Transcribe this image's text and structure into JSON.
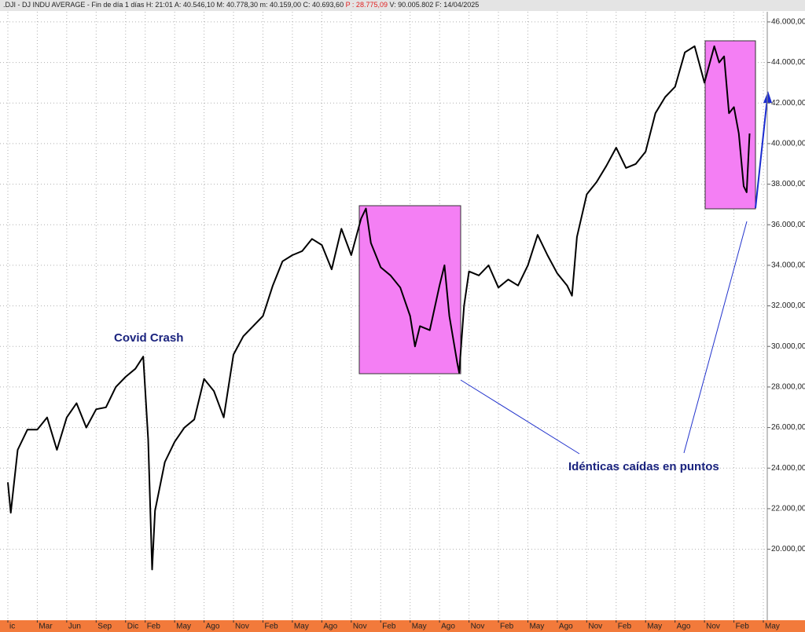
{
  "chart_data": {
    "type": "line",
    "header": [
      ".DJI - DJ INDU AVERAGE - Fin de día 1 días H: 21:01 A: 40.546,10 M: 40.778,30 m: 40.159,00 C: 40.693,60",
      "P : 28.775,09",
      "V: 90.005.802 F: 14/04/2025"
    ],
    "annotations": [
      "Covid Crash",
      "Idénticas caídas en puntos"
    ],
    "color": "#000000",
    "grid": true,
    "x": [
      0,
      0.3,
      1,
      2,
      3,
      4,
      5,
      6,
      7,
      8,
      9,
      10,
      11,
      12,
      13,
      13.8,
      14.3,
      14.7,
      15,
      16,
      17,
      18,
      19,
      20,
      21,
      22,
      23,
      24,
      25,
      26,
      27,
      28,
      29,
      30,
      31,
      32,
      33,
      34,
      35,
      36,
      36.5,
      37,
      38,
      39,
      40,
      41,
      41.5,
      42,
      43,
      44,
      44.5,
      45,
      45.8,
      46,
      46.5,
      47,
      48,
      49,
      50,
      51,
      52,
      53,
      54,
      55,
      56,
      57,
      57.5,
      58,
      59,
      60,
      61,
      62,
      63,
      64,
      65,
      66,
      67,
      68,
      69,
      70,
      71,
      72,
      72.5,
      73,
      73.5,
      74,
      74.5,
      75,
      75.3,
      75.6
    ],
    "values": [
      23300,
      21800,
      24900,
      25900,
      25900,
      26500,
      24900,
      26500,
      27200,
      26000,
      26900,
      27000,
      28000,
      28500,
      28900,
      29500,
      25400,
      19000,
      21900,
      24300,
      25300,
      26000,
      26400,
      28400,
      27800,
      26500,
      29600,
      30500,
      31000,
      31500,
      33000,
      34200,
      34500,
      34700,
      35300,
      35000,
      33800,
      35800,
      34500,
      36300,
      36800,
      35100,
      33900,
      33500,
      32900,
      31500,
      30000,
      31000,
      30800,
      33000,
      34000,
      31500,
      29200,
      28700,
      32000,
      33700,
      33500,
      34000,
      32900,
      33300,
      33000,
      34000,
      35500,
      34500,
      33600,
      33000,
      32500,
      35400,
      37500,
      38100,
      38900,
      39800,
      38800,
      39000,
      39600,
      41500,
      42300,
      42800,
      44500,
      44800,
      43000,
      44800,
      44000,
      44300,
      41500,
      41800,
      40500,
      37900,
      37600,
      40500
    ],
    "xlim": [
      -0.8,
      77.4
    ],
    "xticks": [
      {
        "value": 0,
        "label": "ic"
      },
      {
        "value": 3,
        "label": "Mar"
      },
      {
        "value": 6,
        "label": "Jun"
      },
      {
        "value": 9,
        "label": "Sep"
      },
      {
        "value": 12,
        "label": "Dic"
      },
      {
        "value": 14,
        "label": "Feb"
      },
      {
        "value": 17,
        "label": "May"
      },
      {
        "value": 20,
        "label": "Ago"
      },
      {
        "value": 23,
        "label": "Nov"
      },
      {
        "value": 26,
        "label": "Feb"
      },
      {
        "value": 29,
        "label": "May"
      },
      {
        "value": 32,
        "label": "Ago"
      },
      {
        "value": 35,
        "label": "Nov"
      },
      {
        "value": 38,
        "label": "Feb"
      },
      {
        "value": 41,
        "label": "May"
      },
      {
        "value": 44,
        "label": "Ago"
      },
      {
        "value": 47,
        "label": "Nov"
      },
      {
        "value": 50,
        "label": "Feb"
      },
      {
        "value": 53,
        "label": "May"
      },
      {
        "value": 56,
        "label": "Ago"
      },
      {
        "value": 59,
        "label": "Nov"
      },
      {
        "value": 62,
        "label": "Feb"
      },
      {
        "value": 65,
        "label": "May"
      },
      {
        "value": 68,
        "label": "Ago"
      },
      {
        "value": 71,
        "label": "Nov"
      },
      {
        "value": 74,
        "label": "Feb"
      },
      {
        "value": 77,
        "label": "May"
      }
    ],
    "ylim": [
      16500,
      46500
    ],
    "yticks": [
      {
        "value": 20000,
        "label": "20.000,00"
      },
      {
        "value": 22000,
        "label": "22.000,00"
      },
      {
        "value": 24000,
        "label": "24.000,00"
      },
      {
        "value": 26000,
        "label": "26.000,00"
      },
      {
        "value": 28000,
        "label": "28.000,00"
      },
      {
        "value": 30000,
        "label": "30.000,00"
      },
      {
        "value": 32000,
        "label": "32.000,00"
      },
      {
        "value": 34000,
        "label": "34.000,00"
      },
      {
        "value": 36000,
        "label": "36.000,00"
      },
      {
        "value": 38000,
        "label": "38.000,00"
      },
      {
        "value": 40000,
        "label": "40.000,00"
      },
      {
        "value": 42000,
        "label": "42.000,00"
      },
      {
        "value": 44000,
        "label": "44.000,00"
      },
      {
        "value": 46000,
        "label": "46.000,00"
      }
    ]
  }
}
